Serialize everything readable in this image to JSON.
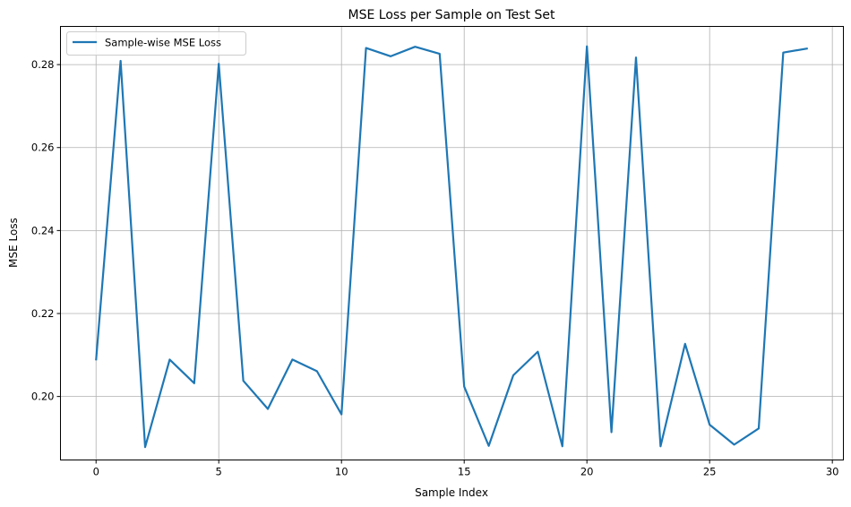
{
  "chart_data": {
    "type": "line",
    "title": "MSE Loss per Sample on Test Set",
    "xlabel": "Sample Index",
    "ylabel": "MSE Loss",
    "xlim": [
      -1.45,
      30.45
    ],
    "ylim": [
      0.1847,
      0.2892
    ],
    "xticks": [
      0,
      5,
      10,
      15,
      20,
      25,
      30
    ],
    "yticks": [
      0.2,
      0.22,
      0.24,
      0.26,
      0.28
    ],
    "xtick_labels": [
      "0",
      "5",
      "10",
      "15",
      "20",
      "25",
      "30"
    ],
    "ytick_labels": [
      "0.20",
      "0.22",
      "0.24",
      "0.26",
      "0.28"
    ],
    "grid": true,
    "legend_position": "top-left",
    "color": "#1f77b4",
    "series": [
      {
        "name": "Sample-wise MSE Loss",
        "x": [
          0,
          1,
          2,
          3,
          4,
          5,
          6,
          7,
          8,
          9,
          10,
          11,
          12,
          13,
          14,
          15,
          16,
          17,
          18,
          19,
          20,
          21,
          22,
          23,
          24,
          25,
          26,
          27,
          28,
          29
        ],
        "y": [
          0.2087,
          0.2809,
          0.1878,
          0.2089,
          0.2032,
          0.2802,
          0.2038,
          0.197,
          0.2089,
          0.2061,
          0.1957,
          0.284,
          0.282,
          0.2843,
          0.2826,
          0.2024,
          0.1881,
          0.2051,
          0.2108,
          0.188,
          0.2844,
          0.1914,
          0.2817,
          0.188,
          0.2127,
          0.1932,
          0.1884,
          0.1923,
          0.2829,
          0.2839
        ]
      }
    ]
  }
}
